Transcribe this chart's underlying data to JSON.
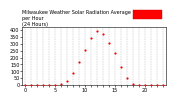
{
  "title": "Milwaukee Weather Solar Radiation Average\nper Hour\n(24 Hours)",
  "hours": [
    0,
    1,
    2,
    3,
    4,
    5,
    6,
    7,
    8,
    9,
    10,
    11,
    12,
    13,
    14,
    15,
    16,
    17,
    18,
    19,
    20,
    21,
    22,
    23
  ],
  "solar_radiation": [
    0,
    0,
    0,
    0,
    0,
    2,
    8,
    30,
    90,
    165,
    255,
    340,
    390,
    370,
    305,
    230,
    135,
    55,
    8,
    1,
    0,
    0,
    0,
    0
  ],
  "dot_color": "#ff0000",
  "background_color": "#ffffff",
  "grid_color": "#999999",
  "ylim": [
    0,
    420
  ],
  "xlim": [
    -0.5,
    23.5
  ],
  "title_fontsize": 3.5,
  "dot_size": 2.5,
  "legend_box_color": "#ff0000",
  "ytick_fontsize": 3.5,
  "xtick_fontsize": 3.5,
  "yticks": [
    0,
    50,
    100,
    150,
    200,
    250,
    300,
    350,
    400
  ],
  "ylabel_labels": [
    "0",
    "50",
    "100",
    "150",
    "200",
    "250",
    "300",
    "350",
    "400"
  ]
}
